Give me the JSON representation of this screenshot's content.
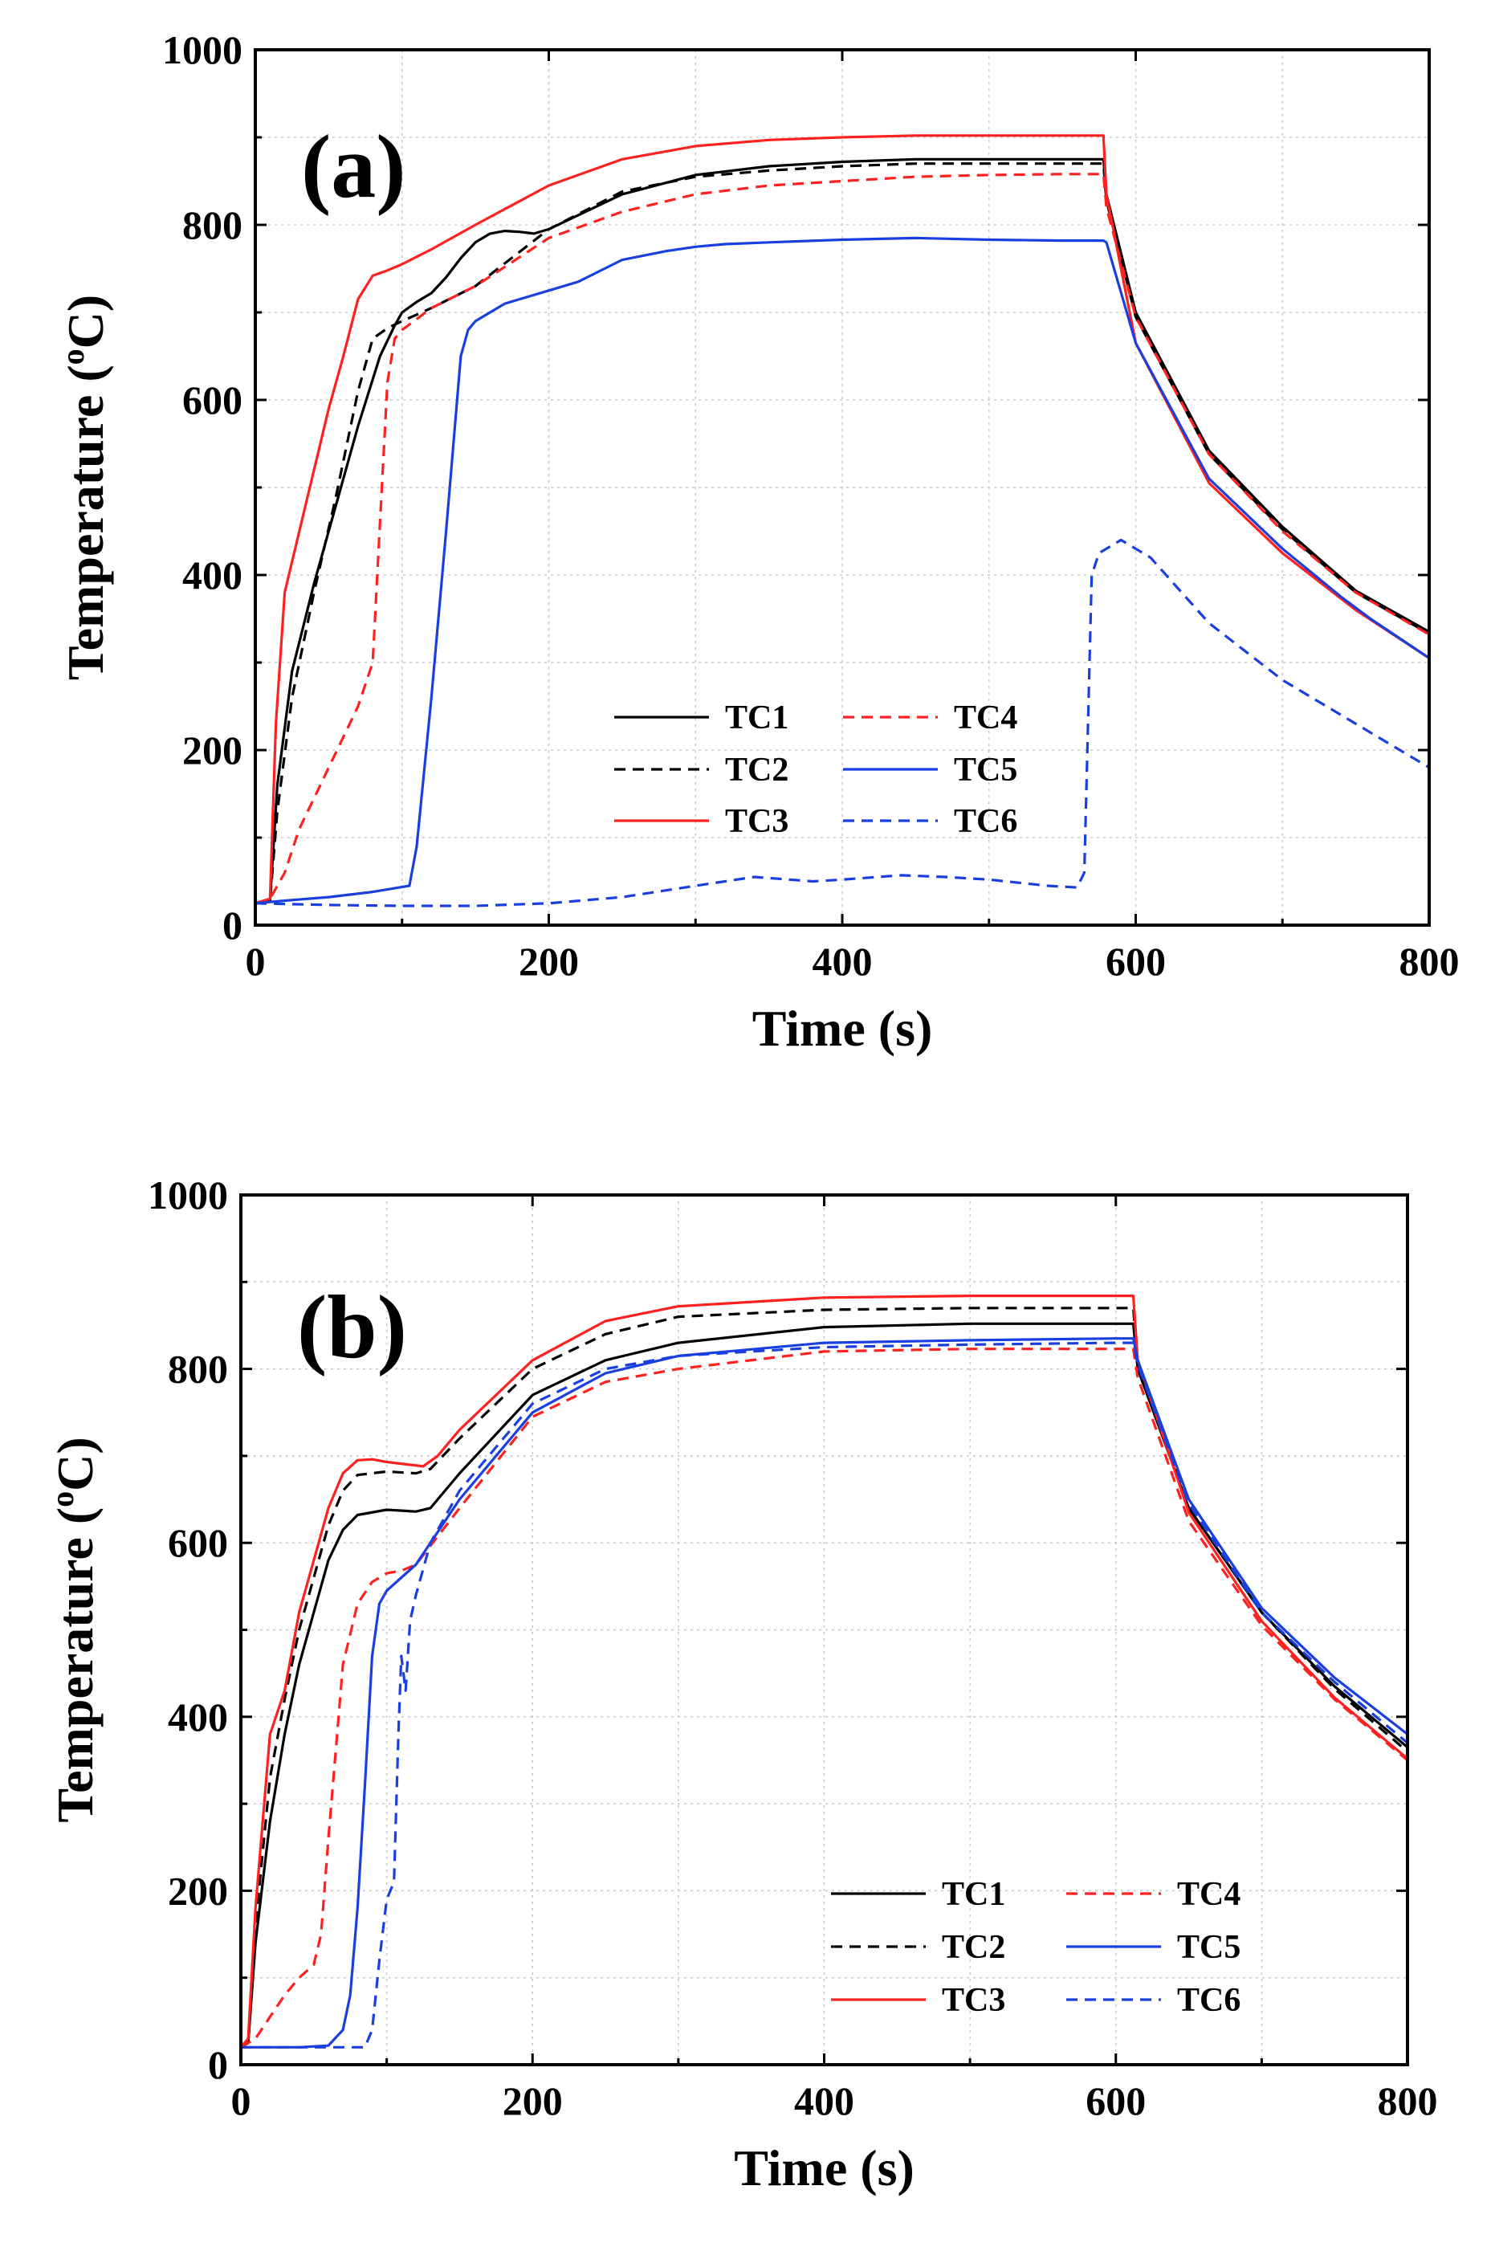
{
  "colors": {
    "black": "#000000",
    "red": "#ff2020",
    "blue": "#1a3fe0"
  },
  "chart_data": [
    {
      "type": "line",
      "panel_label": "(a)",
      "xlabel": "Time (s)",
      "ylabel_main": "Temperature (",
      "ylabel_sup": "o",
      "ylabel_tail": "C)",
      "xlim": [
        0,
        800
      ],
      "ylim": [
        0,
        1000
      ],
      "xticks": [
        "0",
        "200",
        "400",
        "600",
        "800"
      ],
      "yticks": [
        "0",
        "200",
        "400",
        "600",
        "800",
        "1000"
      ],
      "legend_position": "bottom-right",
      "series": [
        {
          "name": "TC1",
          "color": "black",
          "dash": false,
          "x": [
            0,
            10,
            15,
            25,
            40,
            55,
            70,
            85,
            95,
            100,
            110,
            120,
            130,
            140,
            150,
            160,
            170,
            180,
            190,
            200,
            250,
            300,
            350,
            400,
            450,
            500,
            550,
            578,
            580,
            600,
            650,
            700,
            750,
            800
          ],
          "y": [
            25,
            28,
            160,
            290,
            390,
            480,
            570,
            650,
            685,
            700,
            712,
            722,
            740,
            762,
            780,
            790,
            793,
            792,
            790,
            795,
            835,
            857,
            867,
            872,
            875,
            875,
            875,
            875,
            835,
            700,
            542,
            455,
            382,
            335
          ]
        },
        {
          "name": "TC2",
          "color": "black",
          "dash": true,
          "x": [
            0,
            10,
            15,
            25,
            40,
            55,
            70,
            80,
            90,
            100,
            120,
            150,
            200,
            250,
            300,
            350,
            400,
            450,
            500,
            550,
            578,
            580,
            600,
            650,
            700,
            750,
            800
          ],
          "y": [
            25,
            28,
            130,
            260,
            380,
            490,
            610,
            670,
            682,
            690,
            705,
            730,
            795,
            838,
            855,
            862,
            867,
            870,
            870,
            870,
            870,
            828,
            695,
            538,
            452,
            380,
            333
          ]
        },
        {
          "name": "TC3",
          "color": "red",
          "dash": false,
          "x": [
            0,
            10,
            14,
            20,
            30,
            40,
            50,
            60,
            70,
            80,
            90,
            100,
            120,
            150,
            200,
            250,
            300,
            350,
            400,
            450,
            500,
            550,
            578,
            580,
            600,
            650,
            700,
            750,
            800
          ],
          "y": [
            25,
            30,
            230,
            380,
            450,
            520,
            590,
            650,
            715,
            742,
            748,
            755,
            772,
            800,
            845,
            875,
            890,
            897,
            900,
            902,
            902,
            902,
            902,
            835,
            665,
            505,
            425,
            360,
            305
          ]
        },
        {
          "name": "TC4",
          "color": "red",
          "dash": true,
          "x": [
            0,
            10,
            20,
            30,
            50,
            70,
            80,
            85,
            90,
            95,
            100,
            120,
            150,
            200,
            250,
            300,
            350,
            400,
            450,
            500,
            550,
            578,
            580,
            600,
            650,
            700,
            750,
            800
          ],
          "y": [
            25,
            30,
            60,
            110,
            180,
            250,
            300,
            460,
            620,
            670,
            680,
            705,
            730,
            785,
            815,
            835,
            845,
            850,
            855,
            857,
            858,
            858,
            820,
            695,
            538,
            450,
            380,
            332
          ]
        },
        {
          "name": "TC5",
          "color": "blue",
          "dash": false,
          "x": [
            0,
            20,
            50,
            80,
            105,
            110,
            120,
            130,
            140,
            145,
            150,
            160,
            170,
            180,
            200,
            220,
            250,
            280,
            300,
            320,
            350,
            400,
            450,
            500,
            550,
            578,
            580,
            600,
            650,
            700,
            740,
            760,
            800
          ],
          "y": [
            25,
            28,
            32,
            38,
            45,
            90,
            260,
            450,
            650,
            680,
            690,
            700,
            710,
            715,
            725,
            735,
            760,
            770,
            775,
            778,
            780,
            783,
            785,
            783,
            782,
            782,
            780,
            665,
            510,
            430,
            375,
            350,
            305
          ]
        },
        {
          "name": "TC6",
          "color": "blue",
          "dash": true,
          "x": [
            0,
            50,
            100,
            150,
            200,
            250,
            300,
            340,
            380,
            400,
            440,
            470,
            500,
            540,
            560,
            565,
            570,
            575,
            590,
            610,
            650,
            700,
            750,
            780,
            800
          ],
          "y": [
            25,
            23,
            22,
            22,
            25,
            32,
            45,
            55,
            50,
            52,
            57,
            55,
            52,
            45,
            43,
            60,
            400,
            425,
            440,
            420,
            345,
            280,
            230,
            200,
            180
          ]
        }
      ]
    },
    {
      "type": "line",
      "panel_label": "(b)",
      "xlabel": "Time (s)",
      "ylabel_main": "Temperature (",
      "ylabel_sup": "o",
      "ylabel_tail": "C)",
      "xlim": [
        0,
        800
      ],
      "ylim": [
        0,
        1000
      ],
      "xticks": [
        "0",
        "200",
        "400",
        "600",
        "800"
      ],
      "yticks": [
        "0",
        "200",
        "400",
        "600",
        "800",
        "1000"
      ],
      "legend_position": "bottom-right",
      "series": [
        {
          "name": "TC1",
          "color": "black",
          "dash": false,
          "x": [
            0,
            5,
            10,
            20,
            30,
            40,
            50,
            60,
            70,
            80,
            100,
            120,
            130,
            150,
            200,
            250,
            300,
            400,
            500,
            600,
            612,
            615,
            650,
            700,
            750,
            800
          ],
          "y": [
            20,
            25,
            140,
            280,
            380,
            460,
            520,
            580,
            615,
            632,
            638,
            636,
            640,
            680,
            770,
            810,
            830,
            848,
            852,
            852,
            852,
            800,
            640,
            520,
            435,
            365
          ]
        },
        {
          "name": "TC2",
          "color": "black",
          "dash": true,
          "x": [
            0,
            5,
            10,
            20,
            30,
            40,
            50,
            60,
            70,
            80,
            100,
            120,
            130,
            150,
            200,
            250,
            300,
            400,
            500,
            600,
            612,
            615,
            650,
            700,
            750,
            800
          ],
          "y": [
            20,
            25,
            160,
            330,
            420,
            500,
            560,
            620,
            660,
            678,
            682,
            680,
            685,
            720,
            800,
            840,
            860,
            868,
            870,
            870,
            870,
            805,
            640,
            520,
            432,
            360
          ]
        },
        {
          "name": "TC3",
          "color": "red",
          "dash": false,
          "x": [
            0,
            5,
            10,
            20,
            30,
            40,
            50,
            60,
            70,
            80,
            90,
            100,
            125,
            135,
            150,
            200,
            250,
            300,
            400,
            500,
            600,
            612,
            615,
            650,
            700,
            750,
            800
          ],
          "y": [
            20,
            30,
            180,
            380,
            430,
            520,
            580,
            640,
            680,
            695,
            696,
            693,
            688,
            700,
            730,
            810,
            855,
            872,
            882,
            884,
            884,
            884,
            810,
            635,
            510,
            422,
            352
          ]
        },
        {
          "name": "TC4",
          "color": "red",
          "dash": true,
          "x": [
            0,
            10,
            20,
            30,
            40,
            50,
            55,
            60,
            65,
            70,
            80,
            90,
            100,
            110,
            120,
            150,
            200,
            250,
            300,
            400,
            500,
            600,
            612,
            615,
            650,
            700,
            750,
            800
          ],
          "y": [
            20,
            30,
            55,
            80,
            100,
            115,
            150,
            260,
            360,
            460,
            530,
            555,
            565,
            568,
            575,
            640,
            745,
            785,
            800,
            820,
            823,
            823,
            823,
            790,
            625,
            505,
            420,
            350
          ]
        },
        {
          "name": "TC5",
          "color": "blue",
          "dash": false,
          "x": [
            0,
            20,
            40,
            60,
            70,
            75,
            80,
            85,
            90,
            95,
            100,
            110,
            120,
            150,
            200,
            250,
            300,
            400,
            500,
            600,
            612,
            615,
            650,
            700,
            750,
            800
          ],
          "y": [
            20,
            20,
            20,
            22,
            40,
            80,
            180,
            320,
            470,
            530,
            545,
            560,
            575,
            650,
            750,
            795,
            815,
            830,
            833,
            835,
            835,
            810,
            650,
            525,
            445,
            380
          ]
        },
        {
          "name": "TC6",
          "color": "blue",
          "dash": true,
          "x": [
            0,
            30,
            60,
            85,
            90,
            95,
            100,
            105,
            108,
            110,
            113,
            116,
            120,
            130,
            150,
            200,
            250,
            300,
            400,
            500,
            600,
            612,
            615,
            650,
            700,
            750,
            800
          ],
          "y": [
            20,
            20,
            20,
            20,
            40,
            120,
            190,
            210,
            380,
            470,
            430,
            510,
            540,
            600,
            660,
            760,
            800,
            815,
            825,
            828,
            830,
            830,
            805,
            645,
            520,
            440,
            370
          ]
        }
      ]
    }
  ]
}
